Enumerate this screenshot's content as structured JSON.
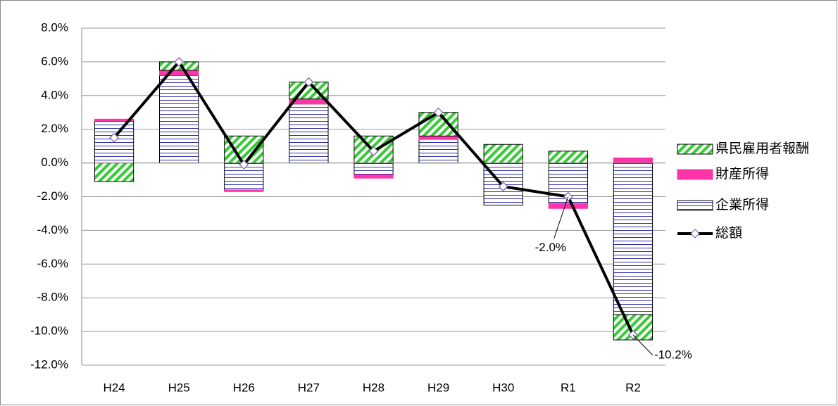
{
  "chart_data": {
    "type": "bar",
    "categories": [
      "H24",
      "H25",
      "H26",
      "H27",
      "H28",
      "H29",
      "H30",
      "R1",
      "R2"
    ],
    "series": [
      {
        "name": "県民雇用者報酬",
        "color": "#33cc33",
        "pattern": "diagonal",
        "values": [
          -1.1,
          0.5,
          1.6,
          1.0,
          1.6,
          1.4,
          1.1,
          0.7,
          -1.5
        ]
      },
      {
        "name": "財産所得",
        "color": "#ff33aa",
        "pattern": "solid",
        "values": [
          0.1,
          0.3,
          -0.1,
          0.3,
          -0.2,
          0.2,
          0,
          -0.3,
          0.3
        ]
      },
      {
        "name": "企業所得",
        "color": "#2f2fb0",
        "pattern": "horizontal",
        "values": [
          2.5,
          5.2,
          -1.6,
          3.5,
          -0.7,
          1.4,
          -2.5,
          -2.4,
          -9.0
        ]
      },
      {
        "name": "総額",
        "type": "line",
        "color": "#000000",
        "marker_color": "#7a5aa6",
        "values": [
          1.5,
          6.0,
          -0.1,
          4.8,
          0.7,
          3.0,
          -1.4,
          -2.0,
          -10.2
        ],
        "value_labels": [
          null,
          null,
          null,
          null,
          null,
          null,
          null,
          "-2.0%",
          "-10.2%"
        ]
      }
    ],
    "ylim": [
      -12,
      8
    ],
    "yticks": [
      {
        "value": -12,
        "label": "-12.0%"
      },
      {
        "value": -10,
        "label": "-10.0%"
      },
      {
        "value": -8,
        "label": "-8.0%"
      },
      {
        "value": -6,
        "label": "-6.0%"
      },
      {
        "value": -4,
        "label": "-4.0%"
      },
      {
        "value": -2,
        "label": "-2.0%"
      },
      {
        "value": 0,
        "label": "0.0%"
      },
      {
        "value": 2,
        "label": "2.0%"
      },
      {
        "value": 4,
        "label": "4.0%"
      },
      {
        "value": 6,
        "label": "6.0%"
      },
      {
        "value": 8,
        "label": "8.0%"
      }
    ],
    "grid": true,
    "legend": "right"
  }
}
